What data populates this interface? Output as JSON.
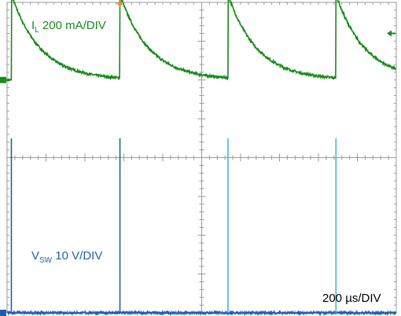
{
  "chart_data": {
    "type": "line",
    "title": "",
    "grid": true,
    "divisions": {
      "x": 10,
      "y": 8
    },
    "x_scale_label": "200 µs/DIV",
    "x_unit": "µs",
    "x_per_div": 200,
    "xlim": [
      0,
      2000
    ],
    "trigger_position": 580,
    "series": [
      {
        "name": "IL",
        "scale_label": "200 mA/DIV",
        "scale": "200 mA/DIV",
        "color": "#1a8a1a",
        "ground_level_div": 2.0,
        "baseline_div": 0.0,
        "peak_div": 4.2,
        "pulse_times": [
          22,
          580,
          1135,
          1690
        ],
        "decay_tau": 150,
        "period": 555
      },
      {
        "name": "VSW",
        "scale_label": "10 V/DIV",
        "scale": "10 V/DIV",
        "color": "#1f5fb0",
        "ground_level_div": -4.0,
        "baseline_div": 0.0,
        "spike_div": 4.5,
        "spike_times": [
          22,
          580,
          1135,
          1690
        ]
      }
    ]
  },
  "labels": {
    "il_main": "I",
    "il_sub": "L",
    "il_scale": " 200 mA/DIV",
    "vsw_main": "V",
    "vsw_sub": "SW",
    "vsw_scale": " 10 V/DIV",
    "timebase": "200 µs/DIV"
  }
}
